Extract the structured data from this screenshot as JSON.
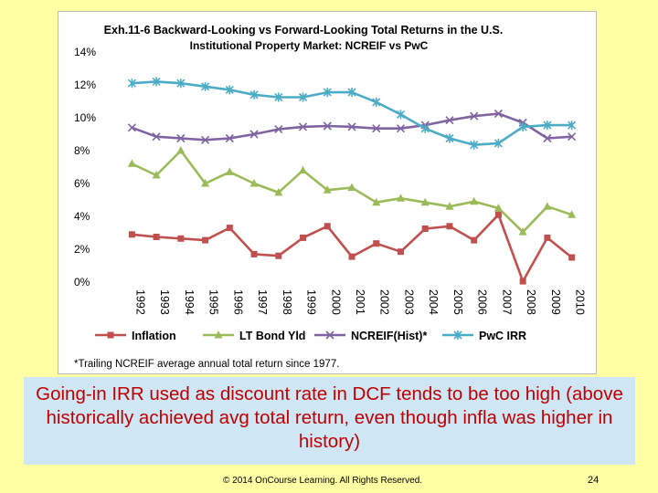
{
  "chart_data": {
    "type": "line",
    "title_line1": "Exh.11-6 Backward-Looking vs Forward-Looking Total Returns in the U.S.",
    "title_line2": "Institutional Property Market: NCREIF vs PwC",
    "xlabel": "",
    "ylabel": "",
    "ylim": [
      0,
      14
    ],
    "y_ticks": [
      "0%",
      "2%",
      "4%",
      "6%",
      "8%",
      "10%",
      "12%",
      "14%"
    ],
    "categories": [
      "1992",
      "1993",
      "1994",
      "1995",
      "1996",
      "1997",
      "1998",
      "1999",
      "2000",
      "2001",
      "2002",
      "2003",
      "2004",
      "2005",
      "2006",
      "2007",
      "2008",
      "2009",
      "2010"
    ],
    "series": [
      {
        "name": "Inflation",
        "color": "#c0504d",
        "marker": "square",
        "values": [
          2.9,
          2.75,
          2.65,
          2.55,
          3.3,
          1.7,
          1.6,
          2.7,
          3.4,
          1.55,
          2.35,
          1.85,
          3.25,
          3.4,
          2.55,
          4.1,
          0.05,
          2.7,
          1.5
        ]
      },
      {
        "name": "LT Bond Yld",
        "color": "#9bbb59",
        "marker": "triangle",
        "values": [
          7.2,
          6.5,
          8.0,
          6.0,
          6.7,
          6.0,
          5.45,
          6.8,
          5.6,
          5.75,
          4.85,
          5.1,
          4.85,
          4.6,
          4.9,
          4.5,
          3.05,
          4.6,
          4.1
        ]
      },
      {
        "name": "NCREIF(Hist)*",
        "color": "#8064a2",
        "marker": "x",
        "values": [
          9.4,
          8.85,
          8.75,
          8.65,
          8.75,
          9.0,
          9.3,
          9.45,
          9.5,
          9.45,
          9.35,
          9.35,
          9.55,
          9.85,
          10.1,
          10.25,
          9.7,
          8.75,
          8.85
        ]
      },
      {
        "name": "PwC IRR",
        "color": "#4bacc6",
        "marker": "star",
        "values": [
          12.1,
          12.2,
          12.1,
          11.9,
          11.7,
          11.4,
          11.25,
          11.25,
          11.55,
          11.55,
          10.95,
          10.2,
          9.35,
          8.75,
          8.35,
          8.45,
          9.45,
          9.55,
          9.55
        ]
      }
    ],
    "legend": [
      "Inflation",
      "LT Bond Yld",
      "NCREIF(Hist)*",
      "PwC IRR"
    ],
    "legend_position": "bottom",
    "grid": false,
    "footnote": "*Trailing NCREIF average annual total return since 1977."
  },
  "caption": "Going-in IRR used as discount rate in DCF tends to be too high (above historically achieved avg total return, even though infla was higher in history)",
  "footer": {
    "copyright": "© 2014 OnCourse Learning. All Rights Reserved.",
    "page_number": "24"
  }
}
